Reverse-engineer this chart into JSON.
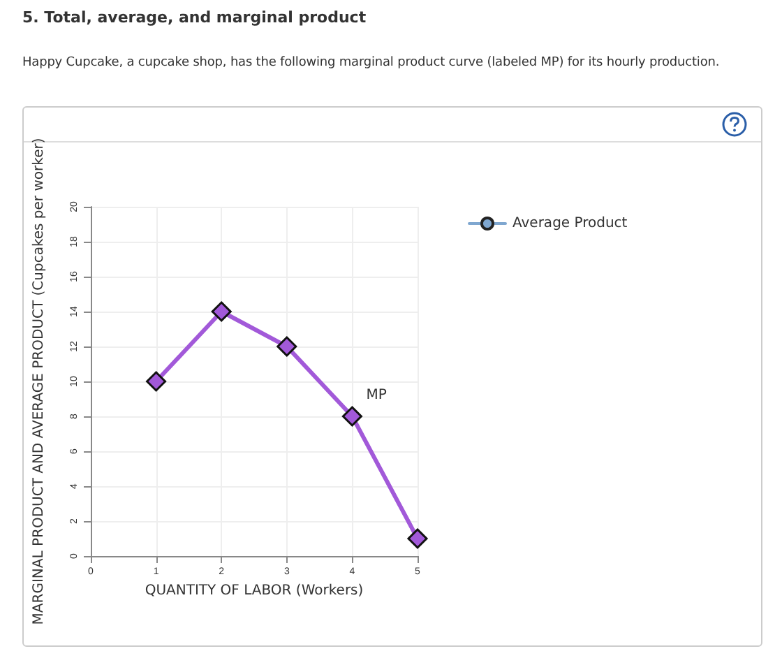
{
  "chart_data": {
    "type": "line",
    "title": "5. Total, average, and marginal product",
    "subtitle": "Happy Cupcake, a cupcake shop, has the following marginal product curve (labeled MP) for its hourly production.",
    "xlabel": "QUANTITY OF LABOR (Workers)",
    "ylabel": "MARGINAL PRODUCT AND AVERAGE PRODUCT (Cupcakes per worker)",
    "x": [
      1,
      2,
      3,
      4,
      5
    ],
    "series": [
      {
        "color": "#a259d9",
        "values": [
          10,
          14,
          12,
          8,
          1
        ],
        "marker": "diamond"
      },
      {
        "name": "Average Product",
        "color": "#7fa7d0",
        "values": [
          null,
          null,
          null,
          null,
          null
        ],
        "marker": "circle"
      }
    ],
    "annotations": [
      {
        "text": "MP",
        "x": 4,
        "y": 8
      }
    ],
    "xlim": [
      0,
      5
    ],
    "xticks": [
      0,
      1,
      2,
      3,
      4,
      5
    ],
    "ylim": [
      0,
      20
    ],
    "yticks": [
      0,
      2,
      4,
      6,
      8,
      10,
      12,
      14,
      16,
      18,
      20
    ],
    "grid": true,
    "legend": "right",
    "line_style": "solid"
  }
}
